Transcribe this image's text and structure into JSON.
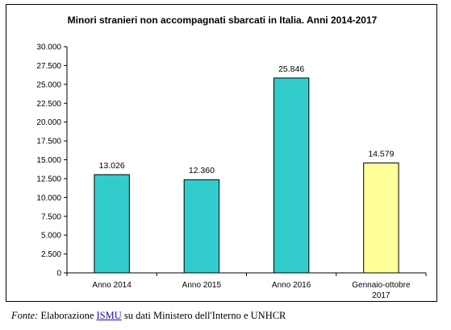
{
  "chart_data": {
    "type": "bar",
    "title": "Minori stranieri non accompagnati sbarcati in Italia. Anni 2014-2017",
    "categories": [
      "Anno 2014",
      "Anno 2015",
      "Anno 2016",
      "Gennaio-ottobre 2017"
    ],
    "values": [
      13026,
      12360,
      25846,
      14579
    ],
    "value_labels": [
      "13.026",
      "12.360",
      "25.846",
      "14.579"
    ],
    "bar_colors": [
      "#33CCCC",
      "#33CCCC",
      "#33CCCC",
      "#FFFF99"
    ],
    "ylim": [
      0,
      30000
    ],
    "yticks": [
      0,
      2500,
      5000,
      7500,
      10000,
      12500,
      15000,
      17500,
      20000,
      22500,
      25000,
      27500,
      30000
    ],
    "ytick_labels": [
      "0",
      "2.500",
      "5.000",
      "7.500",
      "10.000",
      "12.500",
      "15.000",
      "17.500",
      "20.000",
      "22.500",
      "25.000",
      "27.500",
      "30.000"
    ],
    "xlabel": "",
    "ylabel": "",
    "grid": false,
    "legend": false
  },
  "source": {
    "prefix": "Fonte:",
    "text_before_link": " Elaborazione ",
    "link_text": "ISMU",
    "text_after_link": " su dati Ministero dell'Interno  e UNHCR"
  }
}
